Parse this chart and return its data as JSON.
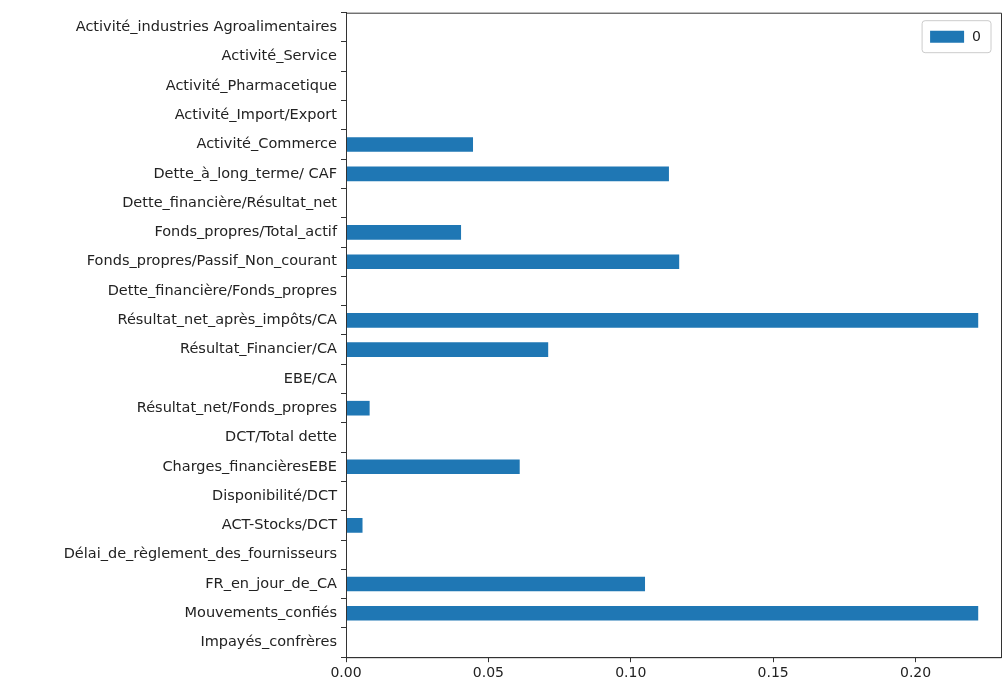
{
  "chart_data": {
    "type": "bar",
    "orientation": "horizontal",
    "categories": [
      "Activité_industries Agroalimentaires",
      "Activité_Service",
      "Activité_Pharmacetique",
      "Activité_Import/Export",
      "Activité_Commerce",
      "Dette_à_long_terme/ CAF",
      "Dette_financière/Résultat_net",
      "Fonds_propres/Total_actif",
      "Fonds_propres/Passif_Non_courant",
      "Dette_financière/Fonds_propres",
      "Résultat_net_après_impôts/CA",
      "Résultat_Financier/CA",
      "EBE/CA",
      "Résultat_net/Fonds_propres",
      "DCT/Total dette",
      "Charges_financièresEBE",
      "Disponibilité/DCT",
      "ACT-Stocks/DCT",
      "Délai_de_règlement_des_fournisseurs",
      "FR_en_jour_de_CA",
      "Mouvements_confiés",
      "Impayés_confrères"
    ],
    "series": [
      {
        "name": "0",
        "color": "#1f77b4",
        "values": [
          0,
          0,
          0,
          0,
          0.0446,
          0.1134,
          0,
          0.0404,
          0.117,
          0,
          0.222,
          0.071,
          0,
          0.0083,
          0,
          0.061,
          0,
          0.0058,
          0,
          0.105,
          0.222,
          0
        ]
      }
    ],
    "xlim": [
      0,
      0.23
    ],
    "xticks": [
      {
        "value": 0,
        "label": "0.00"
      },
      {
        "value": 0.05,
        "label": "0.05"
      },
      {
        "value": 0.1,
        "label": "0.10"
      },
      {
        "value": 0.15,
        "label": "0.15"
      },
      {
        "value": 0.2,
        "label": "0.20"
      }
    ],
    "grid": false,
    "legend": "top right"
  }
}
